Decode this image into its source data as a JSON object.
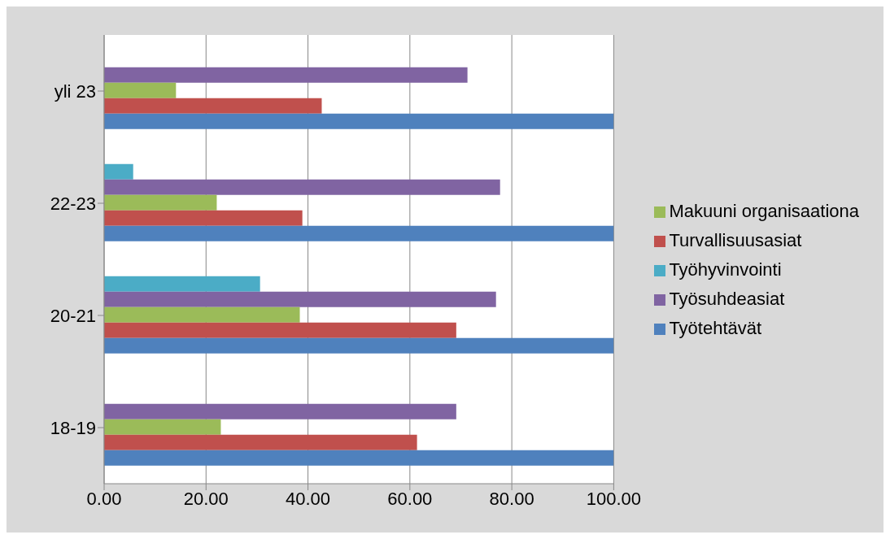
{
  "chart_data": {
    "type": "bar",
    "orientation": "horizontal",
    "categories": [
      "yli 23",
      "22-23",
      "20-21",
      "18-19"
    ],
    "series": [
      {
        "name": "Työhyvinvointi",
        "color": "#4bacc6",
        "values": [
          0,
          5.7,
          30.6,
          0
        ]
      },
      {
        "name": "Työsuhdeasiat",
        "color": "#8064a2",
        "values": [
          71.3,
          77.7,
          76.9,
          69.1
        ]
      },
      {
        "name": "Makuuni organisaationa",
        "color": "#9bbb59",
        "values": [
          14.1,
          22.1,
          38.4,
          22.9
        ]
      },
      {
        "name": "Turvallisuusasiat",
        "color": "#c0504d",
        "values": [
          42.7,
          38.9,
          69.1,
          61.4
        ]
      },
      {
        "name": "Työtehtävät",
        "color": "#4f81bd",
        "values": [
          100,
          100,
          100,
          100
        ]
      }
    ],
    "xlim": [
      0,
      100
    ],
    "xticks": [
      {
        "value": 0,
        "label": "0.00"
      },
      {
        "value": 20,
        "label": "20.00"
      },
      {
        "value": 40,
        "label": "40.00"
      },
      {
        "value": 60,
        "label": "60.00"
      },
      {
        "value": 80,
        "label": "80.00"
      },
      {
        "value": 100,
        "label": "100.00"
      }
    ],
    "grid": "x",
    "legend": "right"
  }
}
